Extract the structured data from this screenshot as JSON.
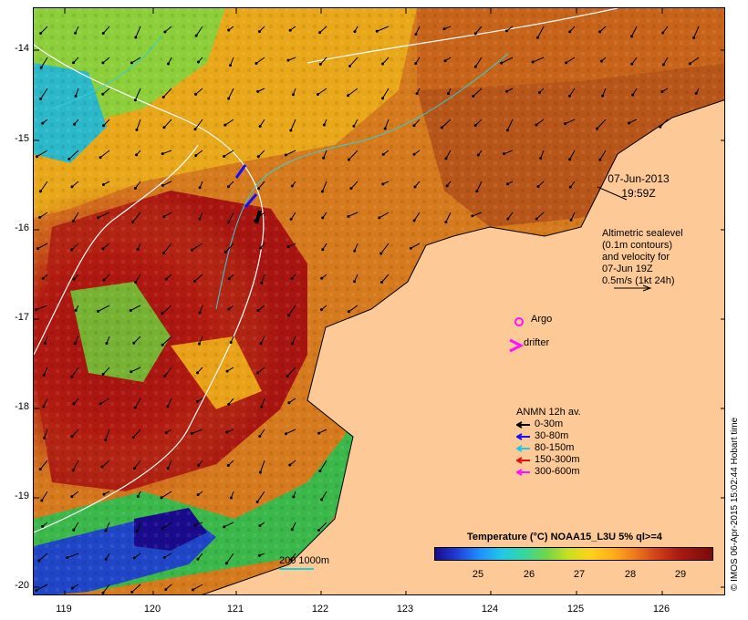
{
  "map": {
    "lat_labels": [
      "-14",
      "-15",
      "-16",
      "-17",
      "-18",
      "-19",
      "-20"
    ],
    "lon_labels": [
      "119",
      "120",
      "121",
      "122",
      "123",
      "124",
      "125",
      "126"
    ],
    "land_color": "#fdc996"
  },
  "annotations": {
    "date": "07-Jun-2013",
    "time": "19:59Z",
    "velocity_lines": [
      "Altimetric sealevel",
      "(0.1m contours)",
      "and velocity for",
      "07-Jun 19Z",
      "0.5m/s (1kt 24h)"
    ],
    "argo_label": "Argo",
    "drifter_label": "drifter",
    "scale_label": "200  1000m"
  },
  "legend": {
    "title": "ANMN 12h av.",
    "items": [
      {
        "label": "0-30m",
        "color": "#000000"
      },
      {
        "label": "30-80m",
        "color": "#1010ff"
      },
      {
        "label": "80-150m",
        "color": "#20c8e8"
      },
      {
        "label": "150-300m",
        "color": "#e01010"
      },
      {
        "label": "300-600m",
        "color": "#ff10ff"
      }
    ]
  },
  "colorbar": {
    "title": "Temperature (°C) NOAA15_L3U 5% ql>=4",
    "ticks": [
      "25",
      "26",
      "27",
      "28",
      "29"
    ]
  },
  "watermark": "© IMOS 06-Apr-2015 15:02:44 Hobart time"
}
